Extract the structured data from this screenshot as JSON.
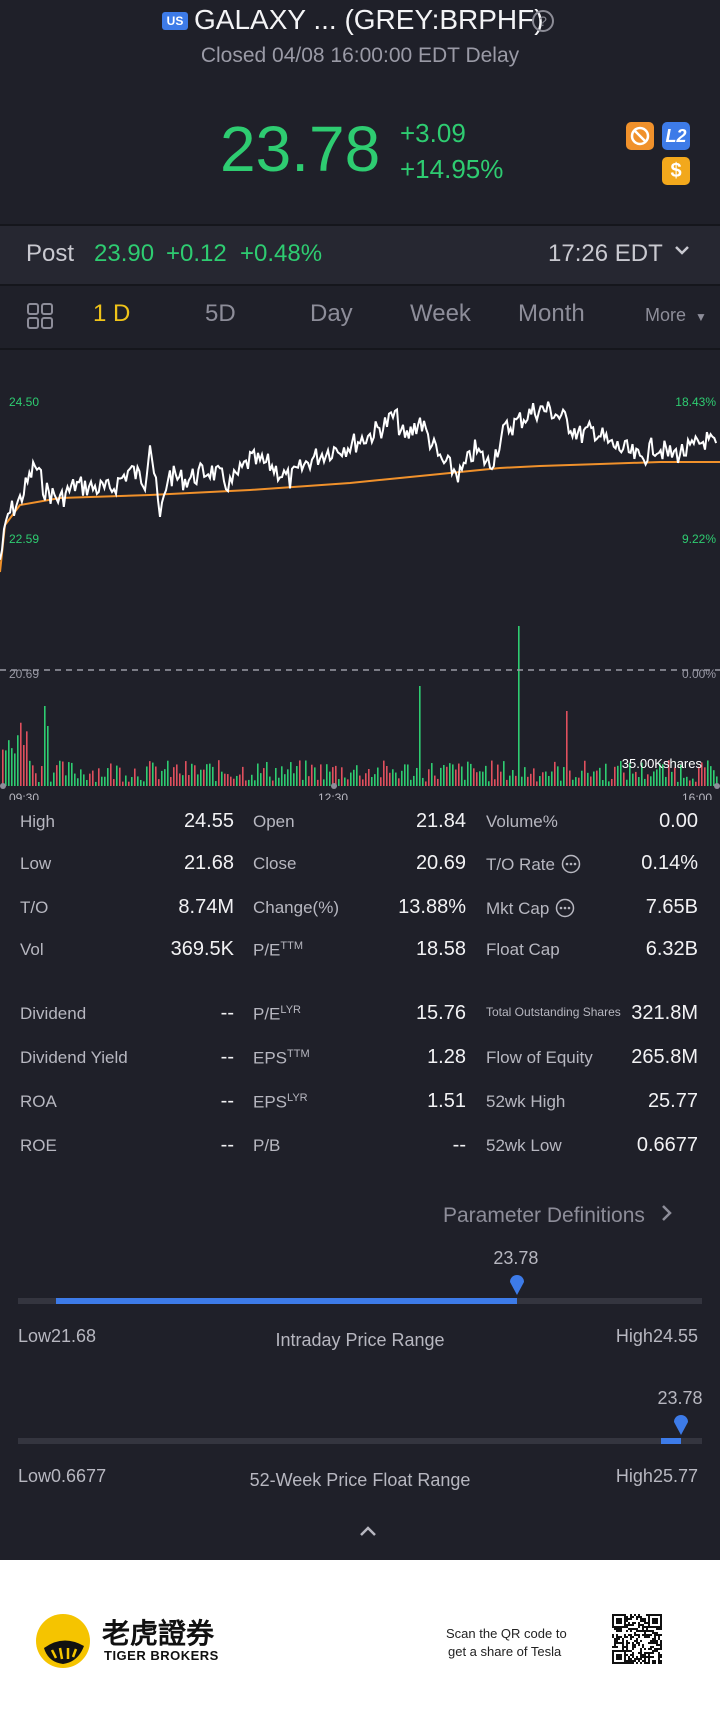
{
  "header": {
    "market_badge": "US",
    "title": "GALAXY ... (GREY:BRPHF)",
    "help_glyph": "?",
    "subtitle": "Closed 04/08 16:00:00 EDT Delay"
  },
  "quote": {
    "price": "23.78",
    "change": "+3.09",
    "change_pct": "+14.95%",
    "badge_l2": "L2",
    "badge_dollar": "$"
  },
  "post": {
    "label": "Post",
    "price": "23.90",
    "change": "+0.12",
    "change_pct": "+0.48%",
    "time": "17:26 EDT"
  },
  "tabs": [
    {
      "label": "1 D",
      "active": true
    },
    {
      "label": "5D"
    },
    {
      "label": "Day"
    },
    {
      "label": "Week"
    },
    {
      "label": "Month"
    },
    {
      "label": "More"
    }
  ],
  "chart": {
    "price_high": "24.50",
    "price_low": "22.59",
    "pct_high": "18.43%",
    "pct_low": "9.22%",
    "prev_close": "20.69",
    "prev_pct": "0.00%",
    "volume_label": "35.00Kshares",
    "time_labels": [
      "09:30",
      "12:30",
      "16:00"
    ],
    "colors": {
      "price": "#ffffff",
      "avg": "#f0912b",
      "up": "#2ecc71",
      "down": "#e0505e"
    }
  },
  "stats": {
    "col1": [
      {
        "label": "High",
        "value": "24.55"
      },
      {
        "label": "Low",
        "value": "21.68"
      },
      {
        "label": "T/O",
        "value": "8.74M"
      },
      {
        "label": "Vol",
        "value": "369.5K"
      },
      {
        "label": "Dividend",
        "value": "--"
      },
      {
        "label": "Dividend Yield",
        "value": "--"
      },
      {
        "label": "ROA",
        "value": "--"
      },
      {
        "label": "ROE",
        "value": "--"
      }
    ],
    "col2": [
      {
        "label": "Open",
        "sup": "",
        "value": "21.84"
      },
      {
        "label": "Close",
        "sup": "",
        "value": "20.69"
      },
      {
        "label": "Change(%)",
        "sup": "",
        "value": "13.88%"
      },
      {
        "label": "P/E",
        "sup": "TTM",
        "value": "18.58"
      },
      {
        "label": "P/E",
        "sup": "LYR",
        "value": "15.76"
      },
      {
        "label": "EPS",
        "sup": "TTM",
        "value": "1.28"
      },
      {
        "label": "EPS",
        "sup": "LYR",
        "value": "1.51"
      },
      {
        "label": "P/B",
        "sup": "",
        "value": "--"
      }
    ],
    "col3": [
      {
        "label": "Volume%",
        "value": "0.00"
      },
      {
        "label": "T/O Rate",
        "value": "0.14%"
      },
      {
        "label": "Mkt Cap",
        "value": "7.65B"
      },
      {
        "label": "Float Cap",
        "value": "6.32B"
      },
      {
        "label": "Total Outstanding Shares",
        "value": "321.8M"
      },
      {
        "label": "Flow of Equity",
        "value": "265.8M"
      },
      {
        "label": "52wk High",
        "value": "25.77"
      },
      {
        "label": "52wk Low",
        "value": "0.6677"
      }
    ],
    "param_link": "Parameter Definitions"
  },
  "intraday_range": {
    "title": "Intraday Price Range",
    "low": "Low21.68",
    "high": "High24.55",
    "current": "23.78",
    "fill_start": 0.0,
    "fill_end": 0.73
  },
  "week52_range": {
    "title": "52-Week Price Float Range",
    "low": "Low0.6677",
    "high": "High25.77",
    "current": "23.78",
    "fill_start": 0.94,
    "fill_end": 0.97
  },
  "footer": {
    "brand_cn": "老虎證券",
    "brand_en": "TIGER BROKERS",
    "qr_text_1": "Scan the QR code to",
    "qr_text_2": "get a share of Tesla"
  }
}
